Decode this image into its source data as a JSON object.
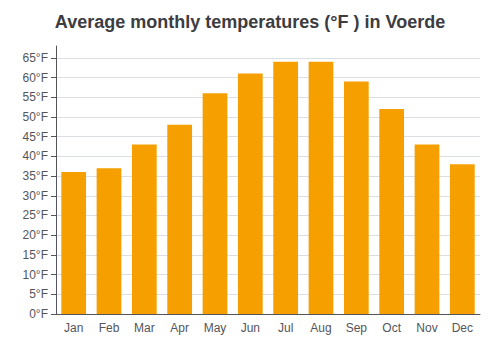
{
  "chart_data": {
    "type": "bar",
    "title": "Average monthly temperatures (°F ) in Voerde",
    "categories": [
      "Jan",
      "Feb",
      "Mar",
      "Apr",
      "May",
      "Jun",
      "Jul",
      "Aug",
      "Sep",
      "Oct",
      "Nov",
      "Dec"
    ],
    "values": [
      36,
      37,
      43,
      48,
      56,
      61,
      64,
      64,
      59,
      52,
      43,
      38
    ],
    "color": "#F5A000",
    "ylim": [
      0,
      68
    ],
    "yticks": [
      {
        "value": 0,
        "label": "0°F"
      },
      {
        "value": 5,
        "label": "5°F"
      },
      {
        "value": 10,
        "label": "10°F"
      },
      {
        "value": 15,
        "label": "15°F"
      },
      {
        "value": 20,
        "label": "20°F"
      },
      {
        "value": 25,
        "label": "25°F"
      },
      {
        "value": 30,
        "label": "30°F"
      },
      {
        "value": 35,
        "label": "35°F"
      },
      {
        "value": 40,
        "label": "40°F"
      },
      {
        "value": 45,
        "label": "45°F"
      },
      {
        "value": 50,
        "label": "50°F"
      },
      {
        "value": 55,
        "label": "55°F"
      },
      {
        "value": 60,
        "label": "60°F"
      },
      {
        "value": 65,
        "label": "65°F"
      }
    ],
    "grid": true
  }
}
